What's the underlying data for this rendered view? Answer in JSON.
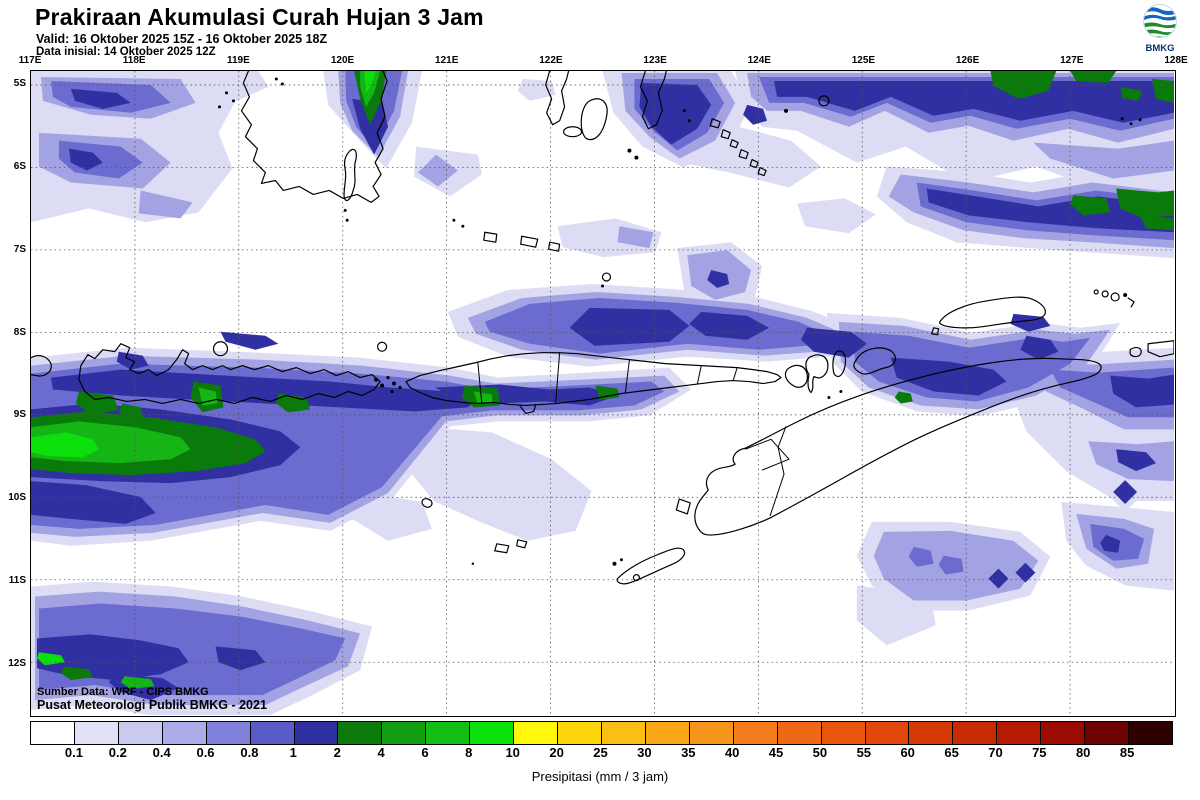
{
  "header": {
    "title": "Prakiraan Akumulasi Curah Hujan 3 Jam",
    "valid": "Valid: 16 Oktober 2025 15Z - 16 Oktober 2025 18Z",
    "init": "Data inisial: 14 Oktober 2025 12Z"
  },
  "logo": {
    "text": "BMKG"
  },
  "map": {
    "lon_labels": [
      "117E",
      "118E",
      "119E",
      "120E",
      "121E",
      "122E",
      "123E",
      "124E",
      "125E",
      "126E",
      "127E",
      "128E"
    ],
    "lat_labels": [
      "5S",
      "6S",
      "7S",
      "8S",
      "9S",
      "10S",
      "11S",
      "12S"
    ],
    "source_line1": "Sumber Data: WRF - CIPS BMKG",
    "source_line2": "Pusat Meteorologi Publik BMKG - 2021"
  },
  "legend": {
    "caption": "Presipitasi (mm / 3 jam)",
    "values": [
      "0.1",
      "0.2",
      "0.4",
      "0.6",
      "0.8",
      "1",
      "2",
      "4",
      "6",
      "8",
      "10",
      "20",
      "25",
      "30",
      "35",
      "40",
      "45",
      "50",
      "55",
      "60",
      "65",
      "70",
      "75",
      "80",
      "85"
    ],
    "colors": [
      "#FFFFFF",
      "#E1E1F7",
      "#CACAF0",
      "#ACACE8",
      "#8181DC",
      "#5A5AC8",
      "#3030A2",
      "#0A7A0A",
      "#12A012",
      "#14BE14",
      "#0BE00B",
      "#FFF70C",
      "#FDD60E",
      "#FBBE12",
      "#F9A617",
      "#F6941C",
      "#F47C1F",
      "#EF6817",
      "#E8560E",
      "#E04708",
      "#D53A05",
      "#C62B04",
      "#B51B03",
      "#9C0B02",
      "#6F0301",
      "#2E0100"
    ]
  }
}
